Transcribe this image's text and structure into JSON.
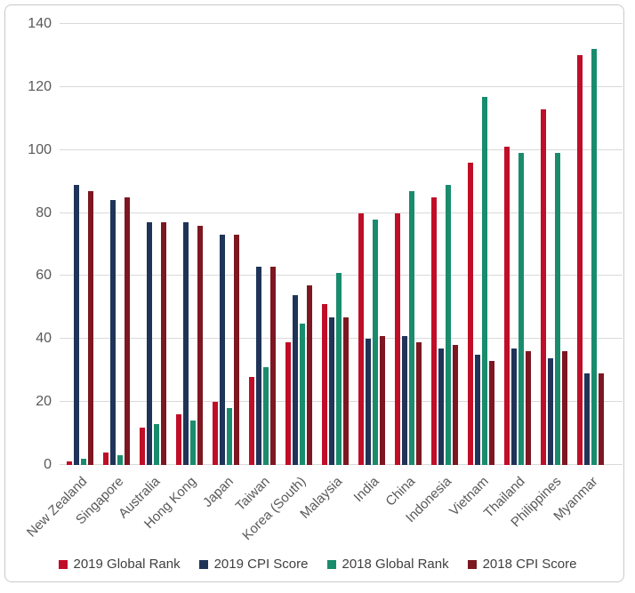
{
  "chart_data": {
    "type": "bar",
    "title": "",
    "categories": [
      "New Zealand",
      "Singapore",
      "Australia",
      "Hong Kong",
      "Japan",
      "Taiwan",
      "Korea (South)",
      "Malaysia",
      "India",
      "China",
      "Indonesia",
      "Vietnam",
      "Thailand",
      "Philippines",
      "Myanmar"
    ],
    "series": [
      {
        "name": "2019 Global Rank",
        "color": "#c00e28",
        "values": [
          1,
          4,
          12,
          16,
          20,
          28,
          39,
          51,
          80,
          80,
          85,
          96,
          101,
          113,
          130
        ]
      },
      {
        "name": "2019 CPI Score",
        "color": "#1f3458",
        "values": [
          89,
          84,
          77,
          77,
          73,
          63,
          54,
          47,
          40,
          41,
          37,
          35,
          37,
          34,
          29
        ]
      },
      {
        "name": "2018 Global Rank",
        "color": "#198c6d",
        "values": [
          2,
          3,
          13,
          14,
          18,
          31,
          45,
          61,
          78,
          87,
          89,
          117,
          99,
          99,
          132
        ]
      },
      {
        "name": "2018 CPI Score",
        "color": "#7d1721",
        "values": [
          87,
          85,
          77,
          76,
          73,
          63,
          57,
          47,
          41,
          39,
          38,
          33,
          36,
          36,
          29
        ]
      }
    ],
    "xlabel": "",
    "ylabel": "",
    "ylim": [
      0,
      140
    ],
    "yticks": [
      0,
      20,
      40,
      60,
      80,
      100,
      120,
      140
    ],
    "grid": true,
    "legend_position": "bottom"
  },
  "colors": {
    "grid": "#d9d9d9",
    "axis_text": "#595959",
    "legend_text": "#3f3f3f",
    "card_border": "#c9c9c9",
    "background": "#ffffff"
  }
}
